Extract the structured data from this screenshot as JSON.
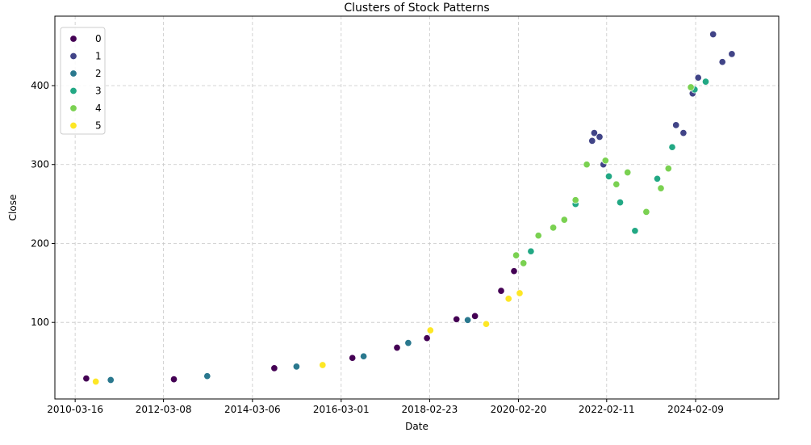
{
  "chart_data": {
    "type": "scatter",
    "title": "Clusters of Stock Patterns",
    "xlabel": "Date",
    "ylabel": "Close",
    "x_ticks": [
      "2010-03-16",
      "2012-03-08",
      "2014-03-06",
      "2016-03-01",
      "2018-02-23",
      "2020-02-20",
      "2022-02-11",
      "2024-02-09"
    ],
    "xlim": [
      "2009-10-01",
      "2025-12-20"
    ],
    "y_ticks": [
      100,
      200,
      300,
      400
    ],
    "ylim": [
      3,
      488
    ],
    "grid": true,
    "legend_position": "top-left",
    "legend": [
      "0",
      "1",
      "2",
      "3",
      "4",
      "5"
    ],
    "cluster_colors": [
      "#440154",
      "#414487",
      "#2a788e",
      "#22a884",
      "#7ad151",
      "#fde725"
    ],
    "series_note": "points colored by cluster index",
    "series": [
      {
        "name": "0",
        "points": [
          [
            "2010-06-15",
            29
          ],
          [
            "2012-06-01",
            28
          ],
          [
            "2014-09-01",
            42
          ],
          [
            "2016-06-01",
            55
          ],
          [
            "2017-06-01",
            68
          ],
          [
            "2018-02-01",
            80
          ],
          [
            "2018-10-01",
            104
          ],
          [
            "2019-03-01",
            108
          ],
          [
            "2019-10-01",
            140
          ],
          [
            "2020-01-15",
            165
          ]
        ]
      },
      {
        "name": "1",
        "points": [
          [
            "2021-10-15",
            330
          ],
          [
            "2021-11-01",
            340
          ],
          [
            "2021-12-15",
            335
          ],
          [
            "2022-01-15",
            300
          ],
          [
            "2023-09-01",
            350
          ],
          [
            "2023-11-01",
            340
          ],
          [
            "2024-01-15",
            390
          ],
          [
            "2024-03-01",
            410
          ],
          [
            "2024-07-01",
            465
          ],
          [
            "2024-09-15",
            430
          ],
          [
            "2024-12-01",
            440
          ]
        ]
      },
      {
        "name": "2",
        "points": [
          [
            "2011-01-01",
            27
          ],
          [
            "2013-03-01",
            32
          ],
          [
            "2015-03-01",
            44
          ],
          [
            "2016-09-01",
            57
          ],
          [
            "2017-09-01",
            74
          ],
          [
            "2019-01-01",
            103
          ]
        ]
      },
      {
        "name": "3",
        "points": [
          [
            "2020-06-01",
            190
          ],
          [
            "2021-06-01",
            250
          ],
          [
            "2022-03-01",
            285
          ],
          [
            "2022-06-01",
            252
          ],
          [
            "2022-10-01",
            216
          ],
          [
            "2023-04-01",
            282
          ],
          [
            "2023-08-01",
            322
          ],
          [
            "2024-02-01",
            395
          ],
          [
            "2024-05-01",
            405
          ]
        ]
      },
      {
        "name": "4",
        "points": [
          [
            "2020-02-01",
            185
          ],
          [
            "2020-04-01",
            175
          ],
          [
            "2020-08-01",
            210
          ],
          [
            "2020-12-01",
            220
          ],
          [
            "2021-03-01",
            230
          ],
          [
            "2021-06-01",
            255
          ],
          [
            "2021-09-01",
            300
          ],
          [
            "2022-02-01",
            305
          ],
          [
            "2022-05-01",
            275
          ],
          [
            "2022-08-01",
            290
          ],
          [
            "2023-01-01",
            240
          ],
          [
            "2023-05-01",
            270
          ],
          [
            "2023-07-01",
            295
          ],
          [
            "2024-01-01",
            398
          ]
        ]
      },
      {
        "name": "5",
        "points": [
          [
            "2010-09-01",
            25
          ],
          [
            "2015-10-01",
            46
          ],
          [
            "2018-03-01",
            90
          ],
          [
            "2019-06-01",
            98
          ],
          [
            "2019-12-01",
            130
          ],
          [
            "2020-03-01",
            137
          ]
        ]
      }
    ]
  }
}
